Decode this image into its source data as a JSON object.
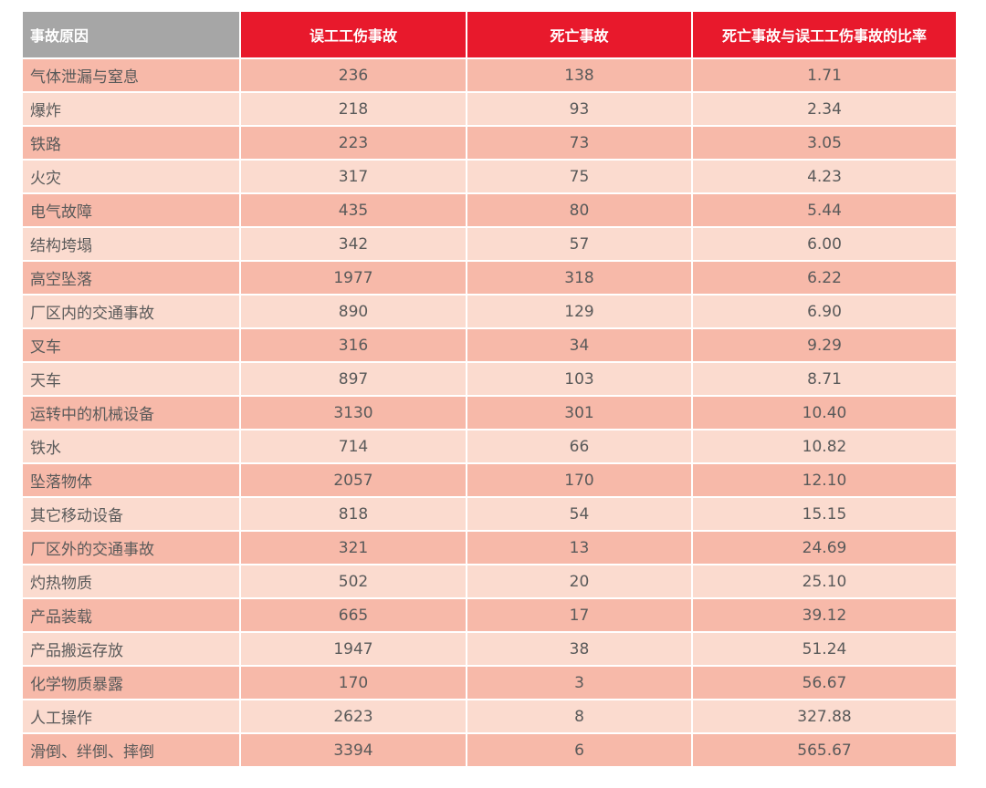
{
  "table": {
    "header": [
      "事故原因",
      "误工工伤事故",
      "死亡事故",
      "死亡事故与误工工伤事故的比率"
    ],
    "rows": [
      [
        "气体泄漏与窒息",
        "236",
        "138",
        "1.71"
      ],
      [
        "爆炸",
        "218",
        "93",
        "2.34"
      ],
      [
        "铁路",
        "223",
        "73",
        "3.05"
      ],
      [
        "火灾",
        "317",
        "75",
        "4.23"
      ],
      [
        "电气故障",
        "435",
        "80",
        "5.44"
      ],
      [
        "结构垮塌",
        "342",
        "57",
        "6.00"
      ],
      [
        "高空坠落",
        "1977",
        "318",
        "6.22"
      ],
      [
        "厂区内的交通事故",
        "890",
        "129",
        "6.90"
      ],
      [
        "叉车",
        "316",
        "34",
        "9.29"
      ],
      [
        "天车",
        "897",
        "103",
        "8.71"
      ],
      [
        "运转中的机械设备",
        "3130",
        "301",
        "10.40"
      ],
      [
        "铁水",
        "714",
        "66",
        "10.82"
      ],
      [
        "坠落物体",
        "2057",
        "170",
        "12.10"
      ],
      [
        "其它移动设备",
        "818",
        "54",
        "15.15"
      ],
      [
        "厂区外的交通事故",
        "321",
        "13",
        "24.69"
      ],
      [
        "灼热物质",
        "502",
        "20",
        "25.10"
      ],
      [
        "产品装载",
        "665",
        "17",
        "39.12"
      ],
      [
        "产品搬运存放",
        "1947",
        "38",
        "51.24"
      ],
      [
        "化学物质暴露",
        "170",
        "3",
        "56.67"
      ],
      [
        "人工操作",
        "2623",
        "8",
        "327.88"
      ],
      [
        "滑倒、绊倒、摔倒",
        "3394",
        "6",
        "565.67"
      ]
    ]
  }
}
